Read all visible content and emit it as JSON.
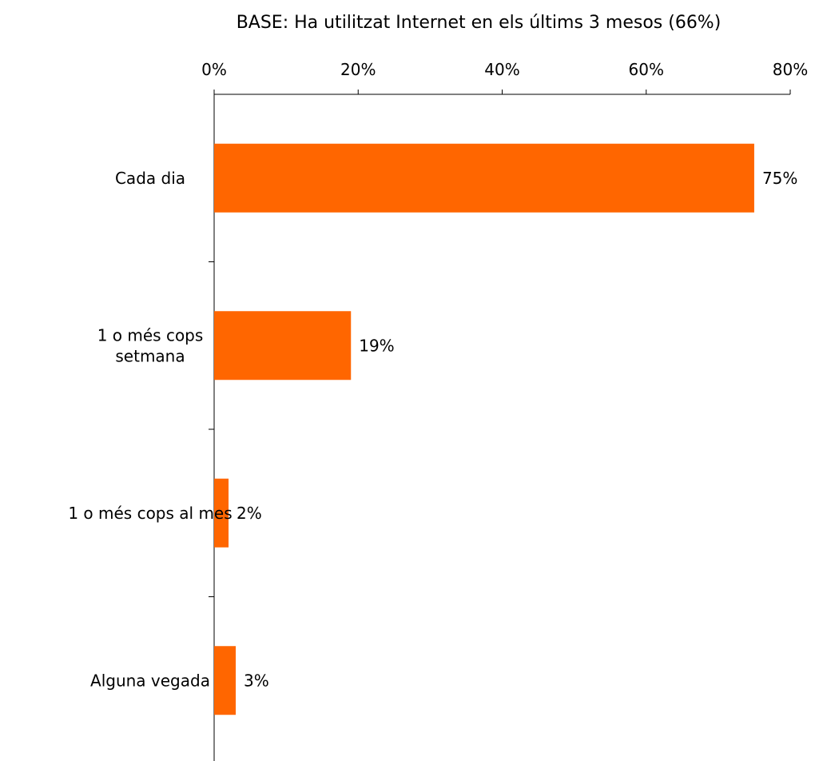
{
  "chart_data": {
    "type": "bar",
    "orientation": "horizontal",
    "title": "BASE: Ha utilitzat Internet en els últims 3 mesos (66%)",
    "categories": [
      [
        "Cada dia"
      ],
      [
        "1 o més cops",
        "setmana"
      ],
      [
        "1 o més cops al mes"
      ],
      [
        "Alguna vegada"
      ]
    ],
    "values": [
      75,
      19,
      2,
      3
    ],
    "value_labels": [
      "75%",
      "19%",
      "2%",
      "3%"
    ],
    "xlim": [
      0,
      80
    ],
    "x_ticks": [
      0,
      20,
      40,
      60,
      80
    ],
    "x_tick_labels": [
      "0%",
      "20%",
      "40%",
      "60%",
      "80%"
    ],
    "axis_position": "top",
    "grid": false,
    "legend": "none",
    "bar_color": "#ff6600"
  }
}
